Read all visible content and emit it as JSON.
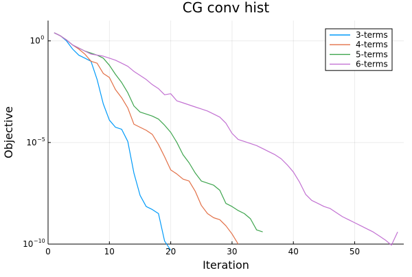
{
  "chart_data": {
    "type": "line",
    "title": "CG conv hist",
    "xlabel": "Iteration",
    "ylabel": "Objective",
    "xlim": [
      0,
      58
    ],
    "ylim_log10": [
      -10,
      1
    ],
    "yscale": "log",
    "grid": true,
    "legend_position": "top-right",
    "x_ticks": [
      0,
      10,
      20,
      30,
      40,
      50
    ],
    "y_ticks": [
      {
        "base": "10",
        "exp": "0",
        "log10": 0
      },
      {
        "base": "10",
        "exp": "−5",
        "log10": -5
      },
      {
        "base": "10",
        "exp": "−10",
        "log10": -10
      }
    ],
    "series": [
      {
        "name": "3-terms",
        "color": "#009af9",
        "x": [
          1,
          2,
          3,
          4,
          5,
          6,
          7,
          8,
          9,
          10,
          11,
          12,
          13,
          14,
          15,
          16,
          17,
          18,
          19,
          20
        ],
        "log10_y": [
          0.4,
          0.25,
          0.0,
          -0.4,
          -0.7,
          -0.85,
          -1.0,
          -1.9,
          -3.1,
          -3.9,
          -4.25,
          -4.35,
          -4.95,
          -6.5,
          -7.6,
          -8.15,
          -8.3,
          -8.5,
          -9.85,
          -10.3
        ]
      },
      {
        "name": "4-terms",
        "color": "#e26f46",
        "x": [
          1,
          2,
          3,
          4,
          5,
          6,
          7,
          8,
          9,
          10,
          11,
          12,
          13,
          14,
          15,
          16,
          17,
          18,
          19,
          20,
          21,
          22,
          23,
          24,
          25,
          26,
          27,
          28,
          29,
          30,
          31
        ],
        "log10_y": [
          0.4,
          0.25,
          0.05,
          -0.2,
          -0.4,
          -0.65,
          -1.0,
          -1.1,
          -1.6,
          -1.8,
          -2.4,
          -2.8,
          -3.3,
          -4.1,
          -4.25,
          -4.4,
          -4.6,
          -5.1,
          -5.7,
          -6.35,
          -6.55,
          -6.8,
          -6.9,
          -7.4,
          -8.1,
          -8.5,
          -8.7,
          -8.8,
          -9.1,
          -9.5,
          -10.0
        ]
      },
      {
        "name": "5-terms",
        "color": "#3da44d",
        "x": [
          1,
          2,
          3,
          4,
          5,
          6,
          7,
          8,
          9,
          10,
          11,
          12,
          13,
          14,
          15,
          16,
          17,
          18,
          19,
          20,
          21,
          22,
          23,
          24,
          25,
          26,
          27,
          28,
          29,
          30,
          31,
          32,
          33,
          34,
          35
        ],
        "log10_y": [
          0.4,
          0.25,
          0.05,
          -0.2,
          -0.35,
          -0.5,
          -0.6,
          -0.7,
          -0.85,
          -1.2,
          -1.65,
          -2.05,
          -2.55,
          -3.2,
          -3.5,
          -3.6,
          -3.7,
          -3.85,
          -4.15,
          -4.5,
          -5.0,
          -5.6,
          -6.0,
          -6.5,
          -6.9,
          -7.0,
          -7.1,
          -7.35,
          -8.0,
          -8.15,
          -8.35,
          -8.5,
          -8.75,
          -9.3,
          -9.4
        ]
      },
      {
        "name": "6-terms",
        "color": "#c271d2",
        "x": [
          1,
          2,
          3,
          4,
          5,
          6,
          7,
          8,
          9,
          10,
          11,
          12,
          13,
          14,
          15,
          16,
          17,
          18,
          19,
          20,
          21,
          22,
          23,
          24,
          25,
          26,
          27,
          28,
          29,
          30,
          31,
          32,
          33,
          34,
          35,
          36,
          37,
          38,
          39,
          40,
          41,
          42,
          43,
          44,
          45,
          46,
          47,
          48,
          49,
          50,
          51,
          52,
          53,
          54,
          55,
          56,
          57
        ],
        "log10_y": [
          0.4,
          0.25,
          0.05,
          -0.2,
          -0.35,
          -0.5,
          -0.65,
          -0.7,
          -0.75,
          -0.85,
          -0.95,
          -1.1,
          -1.25,
          -1.5,
          -1.7,
          -1.9,
          -2.15,
          -2.35,
          -2.65,
          -2.6,
          -2.95,
          -3.05,
          -3.15,
          -3.25,
          -3.35,
          -3.45,
          -3.6,
          -3.75,
          -4.05,
          -4.55,
          -4.85,
          -4.95,
          -5.05,
          -5.15,
          -5.3,
          -5.45,
          -5.6,
          -5.8,
          -6.1,
          -6.45,
          -6.95,
          -7.55,
          -7.85,
          -8.0,
          -8.15,
          -8.25,
          -8.45,
          -8.65,
          -8.8,
          -8.95,
          -9.1,
          -9.25,
          -9.4,
          -9.6,
          -9.8,
          -10.05,
          -9.4
        ]
      }
    ]
  }
}
